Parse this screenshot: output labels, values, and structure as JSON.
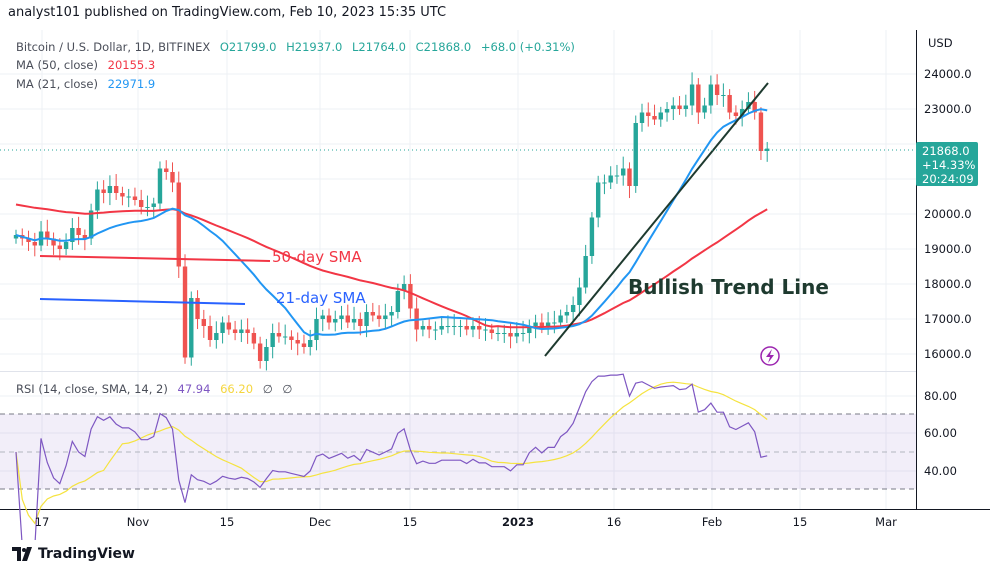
{
  "header": {
    "published": "analyst101 published on TradingView.com, Feb 10, 2023 15:35 UTC"
  },
  "legend": {
    "symbol": "Bitcoin / U.S. Dollar, 1D, BITFINEX",
    "open": "O21799.0",
    "high": "H21937.0",
    "low": "L21764.0",
    "close": "C21868.0",
    "change": "+68.0 (+0.31%)",
    "ma50_label": "MA (50, close)",
    "ma50_value": "20155.3",
    "ma21_label": "MA (21, close)",
    "ma21_value": "22971.9",
    "rsi_label": "RSI (14, close, SMA, 14, 2)",
    "rsi_value": "47.94",
    "rsi_sma_value": "66.20",
    "rsi_extra1": "∅",
    "rsi_extra2": "∅"
  },
  "price_axis": {
    "currency": "USD",
    "ticks": [
      "24000.0",
      "23000.0",
      "20000.0",
      "19000.0",
      "18000.0",
      "17000.0",
      "16000.0"
    ],
    "last_price": "21868.0",
    "last_change": "+14.33%",
    "countdown": "20:24:09"
  },
  "rsi_axis": {
    "ticks": [
      "80.00",
      "60.00",
      "40.00"
    ]
  },
  "date_axis": {
    "ticks": [
      "17",
      "Nov",
      "15",
      "Dec",
      "15",
      "2023",
      "16",
      "Feb",
      "15",
      "Mar"
    ]
  },
  "annotations": {
    "sma50": "50-day SMA",
    "sma21": "21-day SMA",
    "trend": "Bullish Trend Line"
  },
  "colors": {
    "up": "#26a69a",
    "down": "#ef5350",
    "ma50": "#f23645",
    "ma21": "#2196f3",
    "rsi": "#7e57c2",
    "rsi_sma": "#f5e33f",
    "trend": "#1e3a2f"
  },
  "footer": {
    "brand": "TradingView"
  },
  "chart_data": {
    "type": "candlestick",
    "start_date": "2022-10-13",
    "closes": [
      19400,
      19300,
      19200,
      19100,
      19500,
      19300,
      19100,
      19000,
      19200,
      19600,
      19400,
      19300,
      20100,
      20700,
      20600,
      20800,
      20600,
      20500,
      20500,
      20400,
      20200,
      20200,
      20300,
      21300,
      21200,
      20900,
      18500,
      15900,
      17600,
      17000,
      16800,
      16400,
      16600,
      16900,
      16700,
      16600,
      16700,
      16600,
      16300,
      15800,
      16200,
      16600,
      16500,
      16500,
      16400,
      16300,
      16200,
      16400,
      17000,
      17100,
      16900,
      17000,
      17100,
      16900,
      17000,
      16800,
      17200,
      17100,
      17000,
      17100,
      17200,
      17800,
      18000,
      17300,
      16700,
      16800,
      16700,
      16700,
      16800,
      16800,
      16800,
      16800,
      16700,
      16800,
      16700,
      16700,
      16600,
      16600,
      16600,
      16500,
      16600,
      16600,
      16800,
      16900,
      16800,
      16900,
      16900,
      17100,
      17200,
      17400,
      17900,
      18800,
      19900,
      20900,
      20900,
      21100,
      21100,
      21300,
      20800,
      22600,
      22900,
      22800,
      22700,
      22900,
      23000,
      23100,
      23000,
      23100,
      23700,
      22900,
      23100,
      23700,
      23400,
      23400,
      22900,
      22800,
      23000,
      23200,
      22900,
      21800,
      21868
    ],
    "price_range": [
      15500,
      24800
    ],
    "rsi_range": [
      20,
      95
    ]
  }
}
